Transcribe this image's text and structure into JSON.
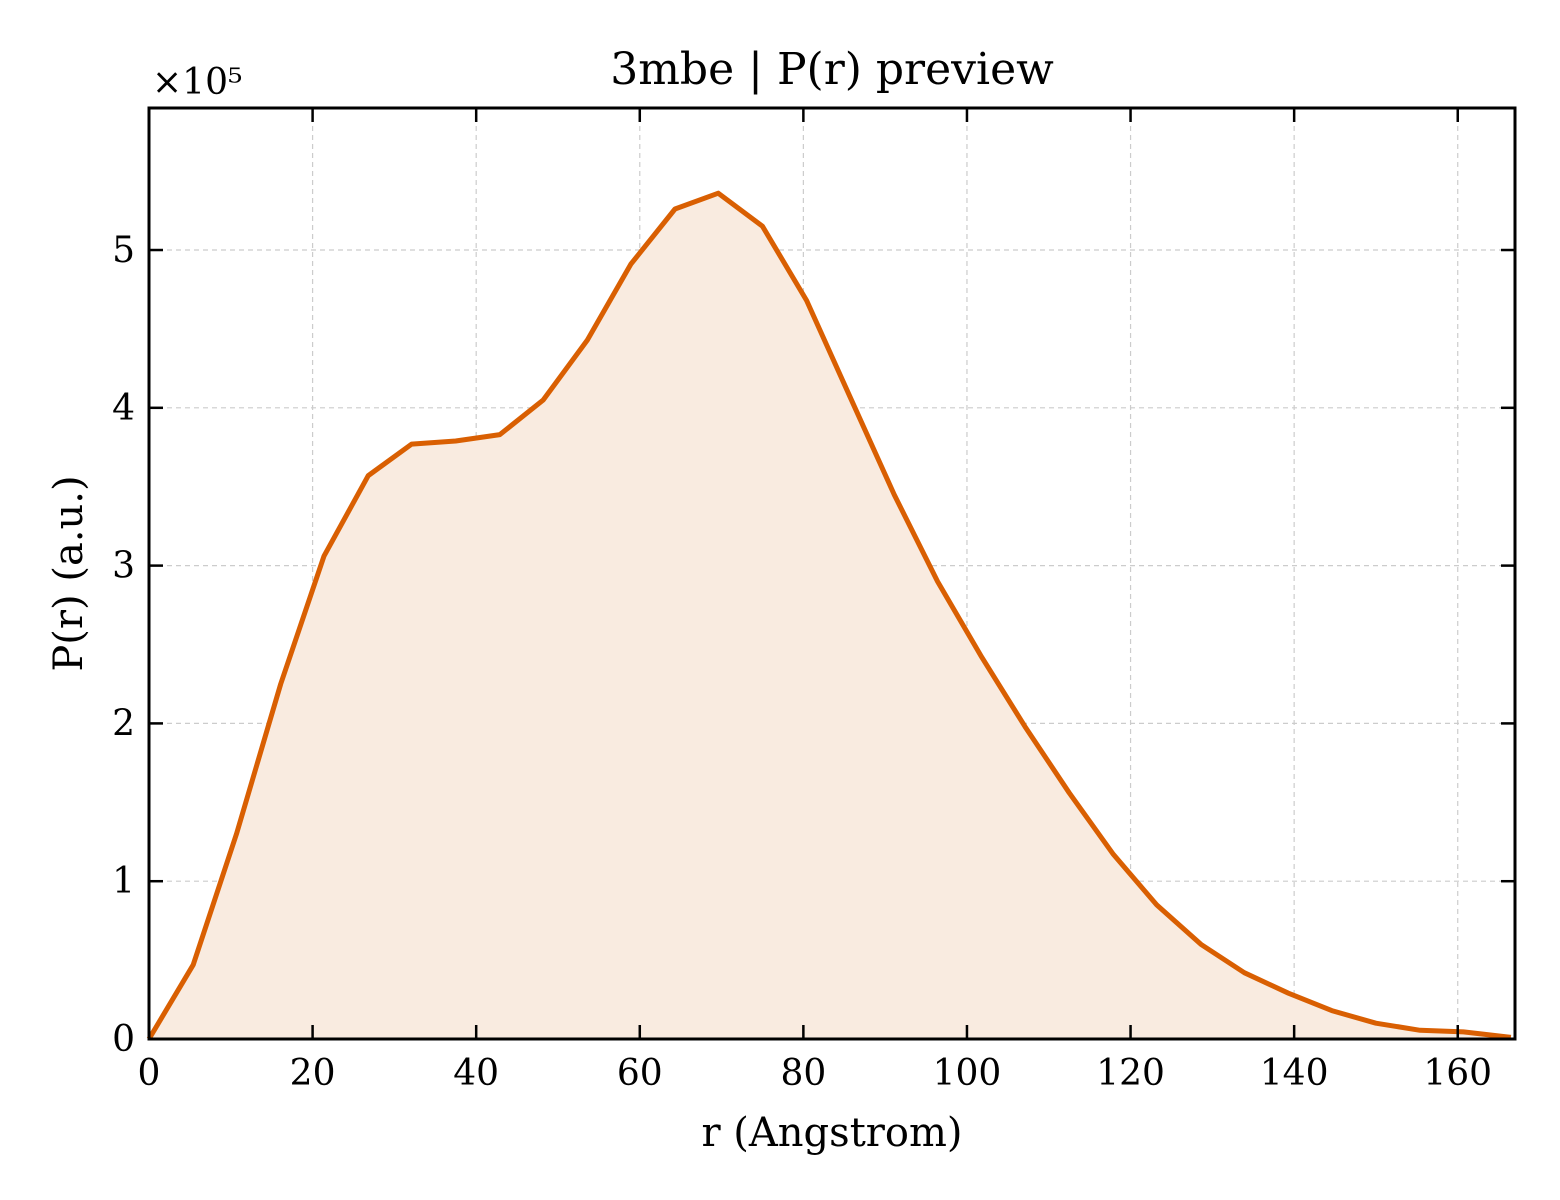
{
  "chart_data": {
    "type": "area",
    "title": "3mbe | P(r) preview",
    "xlabel": "r (Angstrom)",
    "ylabel": "P(r) (a.u.)",
    "y_multiplier": "×10⁵",
    "xlim": [
      0,
      167
    ],
    "ylim": [
      0,
      5.9
    ],
    "x_ticks": [
      0,
      20,
      40,
      60,
      80,
      100,
      120,
      140,
      160
    ],
    "y_ticks": [
      0,
      1,
      2,
      3,
      4,
      5
    ],
    "grid": true,
    "colors": {
      "line": "#d95f02",
      "fill": "#f9ebe0"
    },
    "series": [
      {
        "x": [
          0,
          5.4,
          10.7,
          16.1,
          21.4,
          26.8,
          32.1,
          37.5,
          42.9,
          48.2,
          53.6,
          58.9,
          64.3,
          69.6,
          75.0,
          80.4,
          85.7,
          91.1,
          96.4,
          101.8,
          107.1,
          112.5,
          117.9,
          123.2,
          128.6,
          133.9,
          139.3,
          144.6,
          150.0,
          155.4,
          160.7,
          166.5
        ],
        "y": [
          0.0,
          0.47,
          1.3,
          2.25,
          3.06,
          3.57,
          3.77,
          3.79,
          3.83,
          4.05,
          4.43,
          4.91,
          5.26,
          5.36,
          5.15,
          4.68,
          4.07,
          3.45,
          2.9,
          2.42,
          1.98,
          1.56,
          1.17,
          0.85,
          0.6,
          0.42,
          0.29,
          0.18,
          0.1,
          0.055,
          0.045,
          0.01
        ]
      }
    ]
  }
}
